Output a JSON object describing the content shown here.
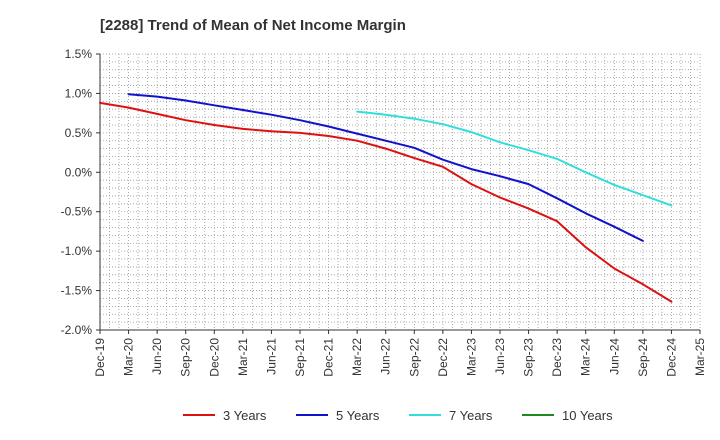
{
  "chart_data": {
    "type": "line",
    "title": "[2288]  Trend of Mean of Net Income Margin",
    "xlabel": "",
    "ylabel": "",
    "ylim": [
      -2.0,
      1.5
    ],
    "y_ticks": [
      1.5,
      1.0,
      0.5,
      0.0,
      -0.5,
      -1.0,
      -1.5,
      -2.0
    ],
    "y_tick_labels": [
      "1.5%",
      "1.0%",
      "0.5%",
      "0.0%",
      "-0.5%",
      "-1.0%",
      "-1.5%",
      "-2.0%"
    ],
    "x_tick_labels": [
      "Dec-19",
      "Mar-20",
      "Jun-20",
      "Sep-20",
      "Dec-20",
      "Mar-21",
      "Jun-21",
      "Sep-21",
      "Dec-21",
      "Mar-22",
      "Jun-22",
      "Sep-22",
      "Dec-22",
      "Mar-23",
      "Jun-23",
      "Sep-23",
      "Dec-23",
      "Mar-24",
      "Jun-24",
      "Sep-24",
      "Dec-24",
      "Mar-25"
    ],
    "grid": true,
    "legend_position": "bottom",
    "series": [
      {
        "name": "3 Years",
        "color": "#dd1111",
        "start_index": 0,
        "values": [
          0.88,
          0.82,
          0.74,
          0.66,
          0.6,
          0.55,
          0.52,
          0.5,
          0.46,
          0.4,
          0.3,
          0.18,
          0.07,
          -0.15,
          -0.32,
          -0.46,
          -0.62,
          -0.95,
          -1.22,
          -1.42,
          -1.64
        ]
      },
      {
        "name": "5 Years",
        "color": "#1111cc",
        "start_index": 1,
        "values": [
          0.99,
          0.96,
          0.91,
          0.85,
          0.79,
          0.73,
          0.66,
          0.58,
          0.49,
          0.4,
          0.31,
          0.16,
          0.04,
          -0.05,
          -0.15,
          -0.33,
          -0.52,
          -0.69,
          -0.87
        ]
      },
      {
        "name": "7 Years",
        "color": "#33dddd",
        "start_index": 9,
        "values": [
          0.77,
          0.73,
          0.68,
          0.61,
          0.51,
          0.38,
          0.28,
          0.17,
          0.0,
          -0.16,
          -0.29,
          -0.42
        ]
      },
      {
        "name": "10 Years",
        "color": "#228822",
        "start_index": 0,
        "values": []
      }
    ]
  }
}
